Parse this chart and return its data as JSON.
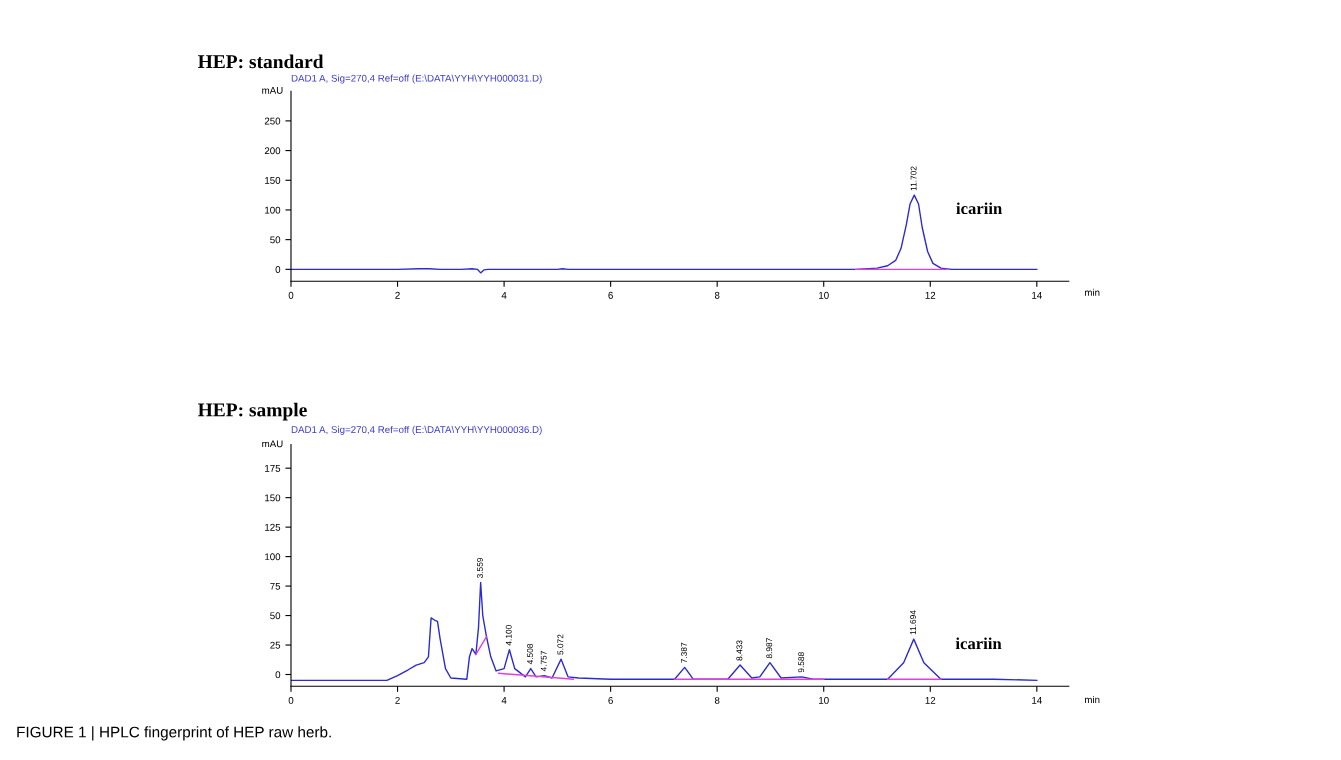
{
  "chart_data": [
    {
      "type": "line",
      "title": "HEP: standard",
      "subtitle": "DAD1 A, Sig=270,4 Ref=off (E:\\DATA\\YYH\\YYH000031.D)",
      "xlabel": "min",
      "ylabel": "mAU",
      "xlim": [
        0,
        14.6
      ],
      "xticks": [
        0,
        2,
        4,
        6,
        8,
        10,
        12,
        14
      ],
      "ylim": [
        -20,
        300
      ],
      "yticks": [
        0,
        50,
        100,
        150,
        200,
        250
      ],
      "marker": "none",
      "line_style": "solid",
      "series": [
        {
          "color": "#2b2bd0",
          "x": [
            0,
            2.0,
            2.4,
            2.6,
            2.8,
            3.2,
            3.4,
            3.5,
            3.56,
            3.62,
            3.7,
            5.0,
            5.1,
            5.2,
            10.6,
            11.0,
            11.2,
            11.35,
            11.45,
            11.55,
            11.62,
            11.7,
            11.78,
            11.85,
            11.95,
            12.05,
            12.2,
            12.4,
            14.0
          ],
          "values": [
            0,
            0,
            1,
            1,
            0,
            0,
            1,
            0,
            -6,
            -1,
            0,
            0,
            1,
            0,
            0,
            2,
            6,
            15,
            35,
            75,
            110,
            125,
            110,
            70,
            30,
            10,
            2,
            0,
            0
          ]
        },
        {
          "color": "#e040e0",
          "x": [
            10.6,
            12.3
          ],
          "values": [
            0,
            0
          ]
        }
      ],
      "annotations": [
        {
          "text": "11.702",
          "x": 11.7,
          "y": 125
        },
        {
          "text": "icariin",
          "x": 11.7,
          "y": 100
        }
      ]
    },
    {
      "type": "line",
      "title": "HEP: sample",
      "subtitle": "DAD1 A, Sig=270,4 Ref=off (E:\\DATA\\YYH\\YYH000036.D)",
      "xlabel": "min",
      "ylabel": "mAU",
      "xlim": [
        0,
        14.6
      ],
      "xticks": [
        0,
        2,
        4,
        6,
        8,
        10,
        12,
        14
      ],
      "ylim": [
        -10,
        195
      ],
      "yticks": [
        0,
        25,
        50,
        75,
        100,
        125,
        150,
        175
      ],
      "marker": "none",
      "line_style": "solid",
      "series": [
        {
          "color": "#2b2bd0",
          "x": [
            0,
            1.8,
            2.0,
            2.2,
            2.35,
            2.5,
            2.58,
            2.63,
            2.7,
            2.75,
            2.8,
            2.9,
            3.0,
            3.3,
            3.35,
            3.4,
            3.47,
            3.52,
            3.56,
            3.6,
            3.67,
            3.75,
            3.85,
            4.0,
            4.1,
            4.2,
            4.4,
            4.5,
            4.6,
            4.757,
            4.9,
            5.07,
            5.2,
            5.4,
            6.0,
            7.2,
            7.39,
            7.55,
            8.2,
            8.43,
            8.65,
            8.8,
            8.99,
            9.2,
            9.59,
            9.8,
            11.2,
            11.5,
            11.69,
            11.88,
            12.2,
            13.2,
            14.0
          ],
          "values": [
            -5,
            -5,
            -1,
            4,
            8,
            10,
            15,
            48,
            46,
            45,
            30,
            5,
            -3,
            -4,
            15,
            22,
            17,
            40,
            78,
            50,
            32,
            15,
            3,
            5,
            21,
            5,
            -2,
            5,
            -2,
            -1,
            -3,
            13,
            -2,
            -3,
            -4,
            -4,
            6,
            -4,
            -4,
            8,
            -3,
            -2,
            10,
            -3,
            -2,
            -4,
            -4,
            10,
            30,
            10,
            -4,
            -4,
            -5
          ]
        },
        {
          "color": "#e040e0",
          "x": [
            3.47,
            3.67
          ],
          "values": [
            17,
            32
          ]
        },
        {
          "color": "#e040e0",
          "x": [
            3.9,
            5.3
          ],
          "values": [
            1,
            -4
          ]
        },
        {
          "color": "#e040e0",
          "x": [
            7.2,
            10.0
          ],
          "values": [
            -4,
            -4
          ]
        },
        {
          "color": "#e040e0",
          "x": [
            11.2,
            12.2
          ],
          "values": [
            -4,
            -4
          ]
        }
      ],
      "annotations": [
        {
          "text": "3.559",
          "x": 3.56,
          "y": 78
        },
        {
          "text": "4.100",
          "x": 4.1,
          "y": 21
        },
        {
          "text": "4.508",
          "x": 4.5,
          "y": 5
        },
        {
          "text": "4.757",
          "x": 4.757,
          "y": -1
        },
        {
          "text": "5.072",
          "x": 5.07,
          "y": 13
        },
        {
          "text": "7.387",
          "x": 7.39,
          "y": 6
        },
        {
          "text": "8.433",
          "x": 8.43,
          "y": 8
        },
        {
          "text": "8.987",
          "x": 8.99,
          "y": 10
        },
        {
          "text": "9.588",
          "x": 9.59,
          "y": -2
        },
        {
          "text": "11.694",
          "x": 11.69,
          "y": 30
        },
        {
          "text": "icariin",
          "x": 11.69,
          "y": 25
        },
        "FIGURE 1 | HPLC fingerprint of HEP raw herb."
      ]
    }
  ]
}
